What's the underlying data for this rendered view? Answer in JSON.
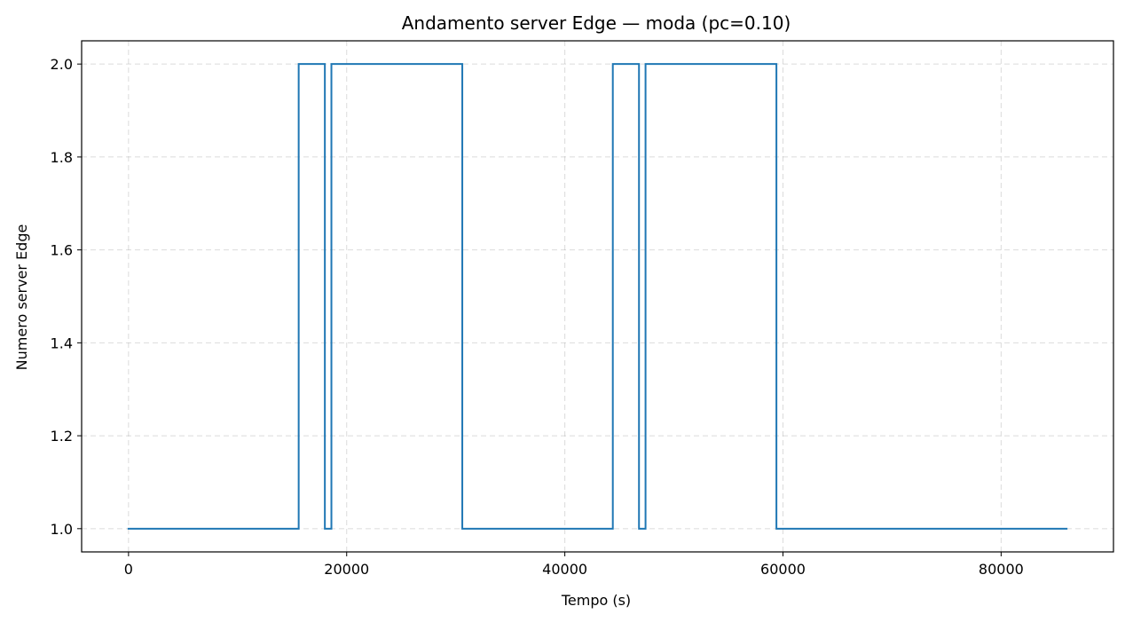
{
  "chart_data": {
    "type": "line",
    "step": "post",
    "title": "Andamento server Edge — moda (pc=0.10)",
    "xlabel": "Tempo (s)",
    "ylabel": "Numero server Edge",
    "xlim": [
      -4300,
      90300
    ],
    "ylim": [
      0.95,
      2.05
    ],
    "xticks": [
      0,
      20000,
      40000,
      60000,
      80000
    ],
    "xtick_labels": [
      "0",
      "20000",
      "40000",
      "60000",
      "80000"
    ],
    "yticks": [
      1.0,
      1.2,
      1.4,
      1.6,
      1.8,
      2.0
    ],
    "ytick_labels": [
      "1.0",
      "1.2",
      "1.4",
      "1.6",
      "1.8",
      "2.0"
    ],
    "grid": true,
    "colors": {
      "line": "#1f77b4"
    },
    "series": [
      {
        "x": [
          0,
          15600,
          18000,
          18600,
          30600,
          44400,
          46800,
          47400,
          59400,
          86000
        ],
        "y": [
          1,
          2,
          1,
          2,
          1,
          2,
          1,
          2,
          1,
          1
        ]
      }
    ]
  }
}
